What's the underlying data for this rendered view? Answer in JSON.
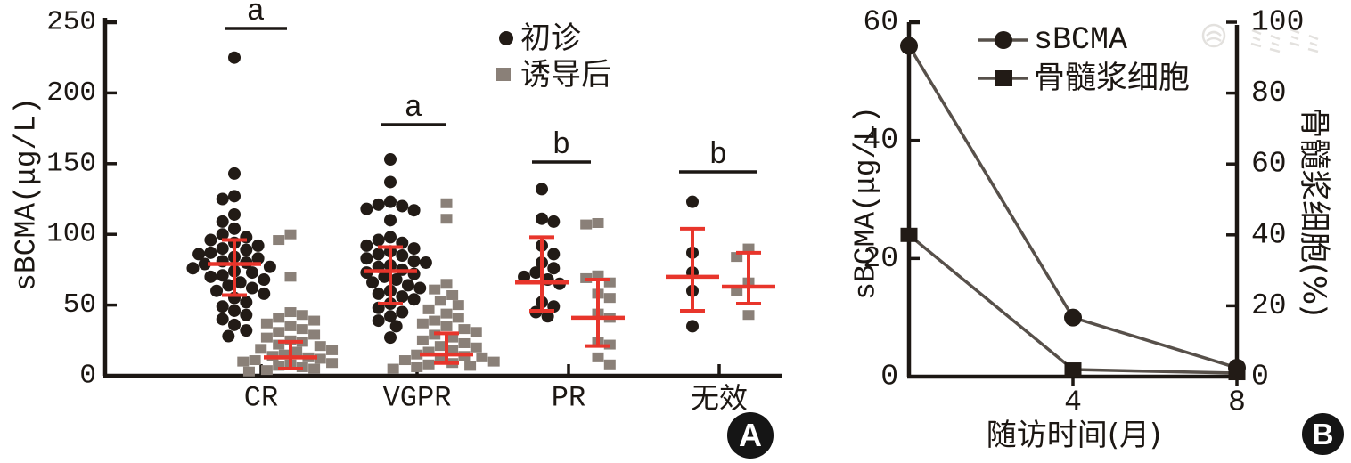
{
  "panels": {
    "a_label": "A",
    "b_label": "B"
  },
  "colors": {
    "point_black": "#221b16",
    "point_gray": "#8a8078",
    "error_red": "#e8352b",
    "axis_black": "#1c1713",
    "line_gray": "#57504a",
    "watermark_gray": "#c3beb7"
  },
  "chart_data": [
    {
      "id": "A",
      "type": "scatter",
      "ylabel": "sBCMA(μg/L)",
      "ylim": [
        0,
        250
      ],
      "yticks": [
        0,
        50,
        100,
        150,
        200,
        250
      ],
      "categories": [
        "CR",
        "VGPR",
        "PR",
        "无效"
      ],
      "legend": [
        {
          "label": "初诊",
          "marker": "circle"
        },
        {
          "label": "诱导后",
          "marker": "square"
        }
      ],
      "significance": [
        "a",
        "a",
        "b",
        "b"
      ],
      "groups": [
        {
          "category": "CR",
          "initial": {
            "values": [
              225,
              143,
              127,
              125,
              114,
              109,
              104,
              100,
              98,
              96,
              94,
              92,
              90,
              89,
              87,
              86,
              84,
              83,
              81,
              80,
              79,
              77,
              76,
              74,
              73,
              71,
              70,
              68,
              66,
              64,
              62,
              60,
              58,
              55,
              52,
              49,
              46,
              43,
              40,
              36,
              32,
              28
            ],
            "mean": 79,
            "err_lo": 57,
            "err_hi": 96
          },
          "post": {
            "values": [
              100,
              96,
              70,
              45,
              43,
              41,
              39,
              37,
              35,
              33,
              31,
              29,
              27,
              25,
              24,
              22,
              21,
              19,
              18,
              17,
              15,
              14,
              13,
              12,
              11,
              10,
              9,
              8,
              7,
              6,
              5,
              4,
              3
            ],
            "mean": 13,
            "err_lo": 5,
            "err_hi": 24
          }
        },
        {
          "category": "VGPR",
          "initial": {
            "values": [
              153,
              137,
              123,
              121,
              120,
              118,
              117,
              110,
              98,
              96,
              94,
              92,
              90,
              88,
              86,
              85,
              83,
              81,
              80,
              78,
              77,
              75,
              73,
              72,
              70,
              68,
              66,
              64,
              62,
              60,
              58,
              56,
              54,
              51,
              48,
              45,
              42,
              39,
              35,
              27
            ],
            "mean": 74,
            "err_lo": 51,
            "err_hi": 91
          },
          "post": {
            "values": [
              122,
              111,
              65,
              61,
              57,
              53,
              50,
              47,
              44,
              41,
              39,
              37,
              35,
              33,
              31,
              29,
              27,
              25,
              23,
              21,
              20,
              18,
              17,
              15,
              14,
              13,
              12,
              11,
              10,
              9,
              8,
              7,
              6,
              5
            ],
            "mean": 15,
            "err_lo": 9,
            "err_hi": 30
          }
        },
        {
          "category": "PR",
          "initial": {
            "values": [
              132,
              111,
              109,
              92,
              86,
              80,
              76,
              73,
              70,
              68,
              65,
              52,
              49,
              45,
              42
            ],
            "mean": 66,
            "err_lo": 46,
            "err_hi": 98
          },
          "post": {
            "values": [
              108,
              107,
              71,
              69,
              66,
              58,
              55,
              44,
              41,
              24,
              22,
              13,
              8
            ],
            "mean": 41,
            "err_lo": 21,
            "err_hi": 68
          }
        },
        {
          "category": "无效",
          "initial": {
            "values": [
              123,
              87,
              73,
              60,
              35
            ],
            "mean": 70,
            "err_lo": 46,
            "err_hi": 104
          },
          "post": {
            "values": [
              90,
              84,
              66,
              60,
              43
            ],
            "mean": 63,
            "err_lo": 51,
            "err_hi": 87
          }
        }
      ]
    },
    {
      "id": "B",
      "type": "line",
      "xlabel": "随访时间(月)",
      "ylabel_left": "sBCMA(μg/L)",
      "ylabel_right": "骨髓浆细胞(%)",
      "xlim": [
        0,
        8
      ],
      "xticks": [
        4,
        8
      ],
      "ylim_left": [
        0,
        60
      ],
      "yticks_left": [
        0,
        20,
        40,
        60
      ],
      "ylim_right": [
        0,
        100
      ],
      "yticks_right": [
        0,
        20,
        40,
        60,
        80,
        100
      ],
      "series": [
        {
          "name": "sBCMA",
          "axis": "left",
          "marker": "circle",
          "x": [
            0,
            4,
            8
          ],
          "y": [
            56,
            10,
            1.5
          ]
        },
        {
          "name": "骨髓浆细胞",
          "axis": "right",
          "marker": "square",
          "x": [
            0,
            4,
            8
          ],
          "y": [
            40,
            2,
            1
          ]
        }
      ]
    }
  ]
}
